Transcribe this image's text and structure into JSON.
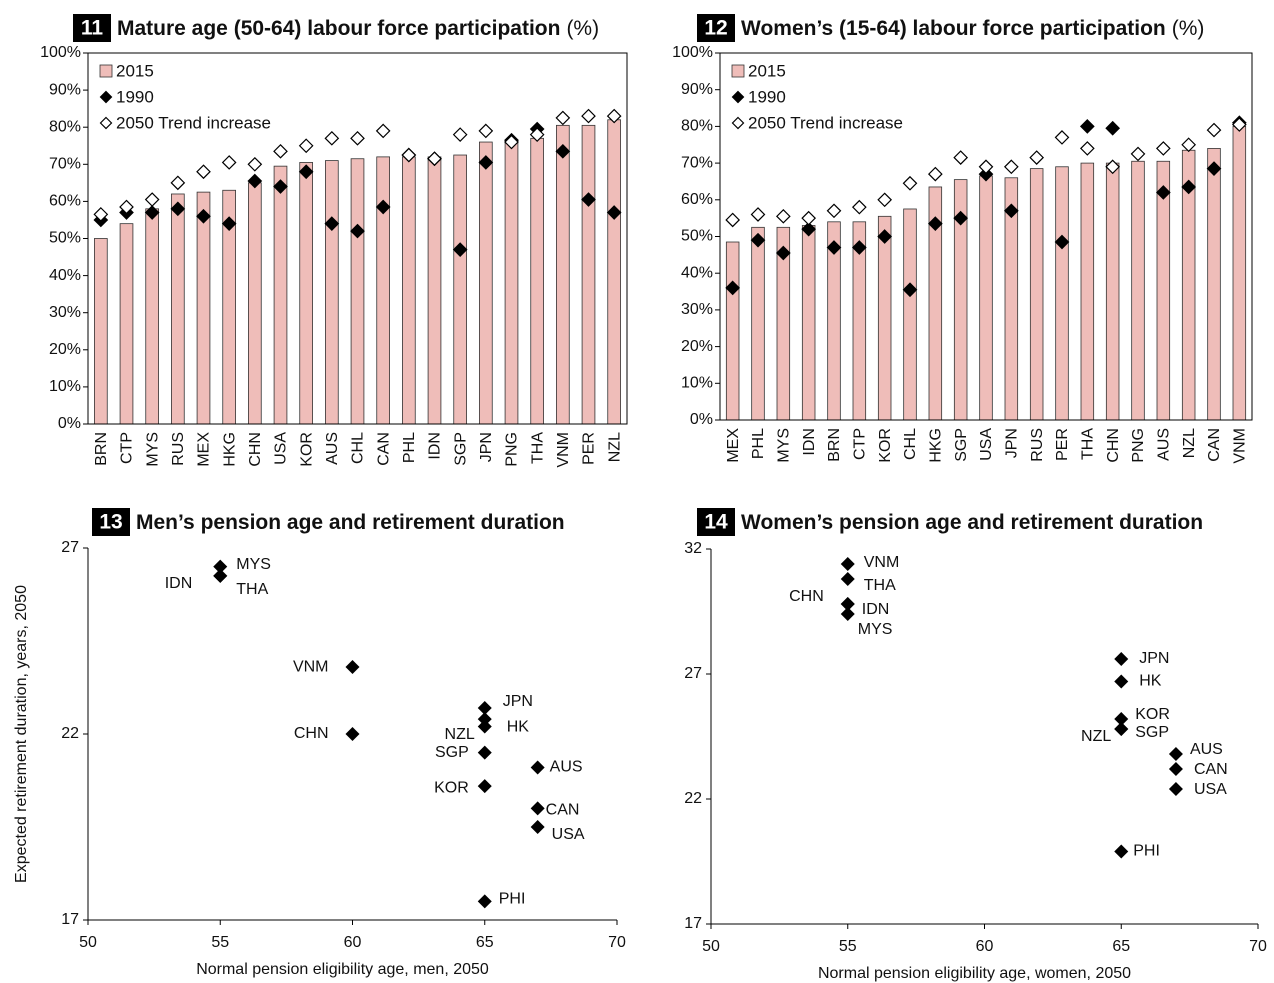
{
  "chart_data": [
    {
      "type": "bar",
      "number": "11",
      "title": "Mature age (50-64) labour force participation",
      "title_suffix": "(%)",
      "categories": [
        "BRN",
        "CTP",
        "MYS",
        "RUS",
        "MEX",
        "HKG",
        "CHN",
        "USA",
        "KOR",
        "AUS",
        "CHL",
        "CAN",
        "PHL",
        "IDN",
        "SGP",
        "JPN",
        "PNG",
        "THA",
        "VNM",
        "PER",
        "NZL"
      ],
      "series": [
        {
          "name": "2015",
          "marker": "bar",
          "color": "#efbdb9",
          "values": [
            50,
            54,
            58,
            62,
            62.5,
            63,
            65,
            69.5,
            70.5,
            71,
            71.5,
            72,
            72,
            72,
            72.5,
            76,
            76.5,
            77,
            80.5,
            80.5,
            82
          ]
        },
        {
          "name": "1990",
          "marker": "diamond",
          "color": "#000000",
          "values": [
            55,
            57,
            57,
            58,
            56,
            54,
            65.5,
            64,
            68,
            54,
            52,
            58.5,
            72.5,
            71.5,
            47,
            70.5,
            76.5,
            79.5,
            73.5,
            60.5,
            57
          ]
        },
        {
          "name": "2050 Trend increase",
          "marker": "diamond",
          "color": "#ffffff",
          "values": [
            56.5,
            58.5,
            60.5,
            65,
            68,
            70.5,
            70,
            73.5,
            75,
            77,
            77,
            79,
            72.5,
            71.5,
            78,
            79,
            76,
            78,
            82.5,
            83,
            83
          ]
        }
      ],
      "ylim": [
        0,
        100
      ],
      "yticks": [
        {
          "value": 0,
          "label": "0%"
        },
        {
          "value": 10,
          "label": "10%"
        },
        {
          "value": 20,
          "label": "20%"
        },
        {
          "value": 30,
          "label": "30%"
        },
        {
          "value": 40,
          "label": "40%"
        },
        {
          "value": 50,
          "label": "50%"
        },
        {
          "value": 60,
          "label": "60%"
        },
        {
          "value": 70,
          "label": "70%"
        },
        {
          "value": 80,
          "label": "80%"
        },
        {
          "value": 90,
          "label": "90%"
        },
        {
          "value": 100,
          "label": "100%"
        }
      ],
      "legend": "upper left"
    },
    {
      "type": "bar",
      "number": "12",
      "title": "Women’s (15-64) labour force participation",
      "title_suffix": "(%)",
      "categories": [
        "MEX",
        "PHL",
        "MYS",
        "IDN",
        "BRN",
        "CTP",
        "KOR",
        "CHL",
        "HKG",
        "SGP",
        "USA",
        "JPN",
        "RUS",
        "PER",
        "THA",
        "CHN",
        "PNG",
        "AUS",
        "NZL",
        "CAN",
        "VNM"
      ],
      "series": [
        {
          "name": "2015",
          "marker": "bar",
          "color": "#efbdb9",
          "values": [
            48.5,
            52.5,
            52.5,
            53,
            54,
            54,
            55.5,
            57.5,
            63.5,
            65.5,
            66.5,
            66,
            68.5,
            69,
            70,
            70,
            70.5,
            70.5,
            73.5,
            74,
            80
          ]
        },
        {
          "name": "1990",
          "marker": "diamond",
          "color": "#000000",
          "values": [
            36,
            49,
            45.5,
            52,
            47,
            47,
            50,
            35.5,
            53.5,
            55,
            67,
            57,
            null,
            48.5,
            80,
            79.5,
            null,
            62,
            63.5,
            68.5,
            81
          ]
        },
        {
          "name": "2050 Trend increase",
          "marker": "diamond",
          "color": "#ffffff",
          "values": [
            54.5,
            56,
            55.5,
            55,
            57,
            58,
            60,
            64.5,
            67,
            71.5,
            69,
            69,
            71.5,
            77,
            74,
            69,
            72.5,
            74,
            75,
            79,
            80.5
          ]
        }
      ],
      "ylim": [
        0,
        100
      ],
      "yticks": [
        {
          "value": 0,
          "label": "0%"
        },
        {
          "value": 10,
          "label": "10%"
        },
        {
          "value": 20,
          "label": "20%"
        },
        {
          "value": 30,
          "label": "30%"
        },
        {
          "value": 40,
          "label": "40%"
        },
        {
          "value": 50,
          "label": "50%"
        },
        {
          "value": 60,
          "label": "60%"
        },
        {
          "value": 70,
          "label": "70%"
        },
        {
          "value": 80,
          "label": "80%"
        },
        {
          "value": 90,
          "label": "90%"
        },
        {
          "value": 100,
          "label": "100%"
        }
      ],
      "legend": "upper left"
    },
    {
      "type": "scatter",
      "number": "13",
      "title": "Men’s pension age and retirement duration",
      "labels": [
        "MYS",
        "IDN",
        "THA",
        "VNM",
        "CHN",
        "JPN",
        "HK",
        "NZL",
        "SGP",
        "AUS",
        "KOR",
        "CAN",
        "USA",
        "PHI"
      ],
      "x": [
        55,
        55,
        55,
        60,
        60,
        65,
        65,
        65,
        65,
        67,
        65,
        67,
        67,
        65
      ],
      "y": [
        26.5,
        26.25,
        26.25,
        23.8,
        22,
        22.7,
        22.4,
        22.2,
        21.5,
        21.1,
        20.6,
        20,
        19.5,
        17.5
      ],
      "color": "#000000",
      "xlim": [
        50,
        70
      ],
      "xticks": [
        50,
        55,
        60,
        65,
        70
      ],
      "ylim": [
        17,
        27
      ],
      "yticks": [
        17,
        22,
        27
      ],
      "x_label": "Normal pension eligibility age, men, 2050",
      "y_label": "Expected retirement duration, years, 2050"
    },
    {
      "type": "scatter",
      "number": "14",
      "title": "Women’s pension age and retirement duration",
      "labels": [
        "VNM",
        "THA",
        "CHN",
        "IDN",
        "MYS",
        "JPN",
        "HK",
        "KOR",
        "SGP",
        "NZL",
        "AUS",
        "CAN",
        "USA",
        "PHI"
      ],
      "x": [
        55,
        55,
        55,
        55,
        55,
        65,
        65,
        65,
        65,
        65,
        67,
        67,
        67,
        65
      ],
      "y": [
        31.4,
        30.8,
        29.8,
        29.8,
        29.4,
        27.6,
        26.7,
        25.2,
        24.8,
        24.8,
        23.8,
        23.2,
        22.4,
        19.9
      ],
      "color": "#000000",
      "xlim": [
        50,
        70
      ],
      "xticks": [
        50,
        55,
        60,
        65,
        70
      ],
      "ylim": [
        17,
        32
      ],
      "yticks": [
        17,
        22,
        27,
        32
      ],
      "x_label": "Normal pension eligibility age, women, 2050"
    }
  ]
}
